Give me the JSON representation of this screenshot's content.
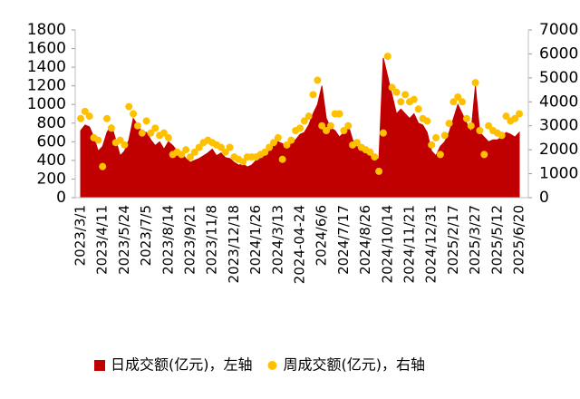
{
  "chart_data": {
    "type": "area_scatter",
    "categories": [
      "2023/3/1",
      null,
      null,
      null,
      null,
      "2023/4/11",
      null,
      null,
      null,
      null,
      "2023/5/24",
      null,
      null,
      null,
      null,
      "2023/7/5",
      null,
      null,
      null,
      null,
      "2023/8/14",
      null,
      null,
      null,
      null,
      "2023/9/21",
      null,
      null,
      null,
      null,
      "2023/11/8",
      null,
      null,
      null,
      null,
      "2023/12/18",
      null,
      null,
      null,
      null,
      "2024/1/26",
      null,
      null,
      null,
      null,
      "2024/3/13",
      null,
      null,
      null,
      null,
      "2024-04-24",
      null,
      null,
      null,
      null,
      "2024/6/6",
      null,
      null,
      null,
      null,
      "2024/7/17",
      null,
      null,
      null,
      null,
      "2024/8/26",
      null,
      null,
      null,
      null,
      "2024/10/14",
      null,
      null,
      null,
      null,
      "2024/11/21",
      null,
      null,
      null,
      null,
      "2024/12/31",
      null,
      null,
      null,
      null,
      "2025/2/17",
      null,
      null,
      null,
      null,
      "2025/3/27",
      null,
      null,
      null,
      null,
      "2025/5/12",
      null,
      null,
      null,
      null,
      "2025/6/20"
    ],
    "series": [
      {
        "name": "日成交额(亿元)，左轴",
        "color": "#c00000",
        "axis": "y",
        "values": [
          720,
          780,
          760,
          650,
          500,
          550,
          700,
          780,
          620,
          450,
          500,
          620,
          850,
          780,
          700,
          700,
          620,
          560,
          600,
          520,
          600,
          560,
          500,
          480,
          420,
          380,
          400,
          420,
          450,
          480,
          520,
          450,
          480,
          430,
          420,
          380,
          350,
          360,
          330,
          350,
          400,
          420,
          450,
          500,
          560,
          600,
          580,
          550,
          600,
          620,
          680,
          700,
          780,
          900,
          1000,
          1200,
          850,
          750,
          720,
          650,
          700,
          780,
          620,
          550,
          500,
          480,
          450,
          400,
          420,
          1500,
          1300,
          1100,
          900,
          950,
          900,
          850,
          900,
          800,
          780,
          700,
          500,
          450,
          550,
          600,
          700,
          850,
          1000,
          900,
          800,
          700,
          1200,
          700,
          650,
          600,
          620,
          620,
          650,
          700,
          680,
          650,
          700
        ]
      },
      {
        "name": "周成交额(亿元)，右轴",
        "color": "#ffc000",
        "axis": "y2",
        "values": [
          3300,
          3600,
          3400,
          2500,
          2400,
          1300,
          3300,
          2900,
          2300,
          2400,
          2200,
          3800,
          3500,
          3000,
          2700,
          3200,
          2700,
          2900,
          2600,
          2700,
          2500,
          1800,
          1900,
          1800,
          2000,
          1700,
          1900,
          2100,
          2300,
          2400,
          2300,
          2200,
          2100,
          1900,
          2100,
          1700,
          1600,
          1500,
          1700,
          1700,
          1700,
          1800,
          1900,
          2100,
          2300,
          2500,
          1600,
          2200,
          2400,
          2800,
          2900,
          3200,
          3400,
          4300,
          4900,
          3000,
          2800,
          3000,
          3500,
          3500,
          2800,
          3000,
          2200,
          2300,
          2100,
          2000,
          1900,
          1700,
          1100,
          2700,
          5900,
          4600,
          4400,
          4000,
          4300,
          4000,
          4100,
          3700,
          3300,
          3200,
          2200,
          2500,
          1800,
          2600,
          3100,
          4000,
          4200,
          4000,
          3300,
          3000,
          4800,
          2800,
          1800,
          3000,
          2800,
          2700,
          2600,
          3400,
          3200,
          3300,
          3500
        ]
      }
    ],
    "ylim": [
      0,
      1800
    ],
    "yticks": [
      0,
      200,
      400,
      600,
      800,
      1000,
      1200,
      1400,
      1600,
      1800
    ],
    "y2lim": [
      0,
      7000
    ],
    "y2ticks": [
      0,
      1000,
      2000,
      3000,
      4000,
      5000,
      6000,
      7000
    ],
    "legend": "bottom"
  }
}
